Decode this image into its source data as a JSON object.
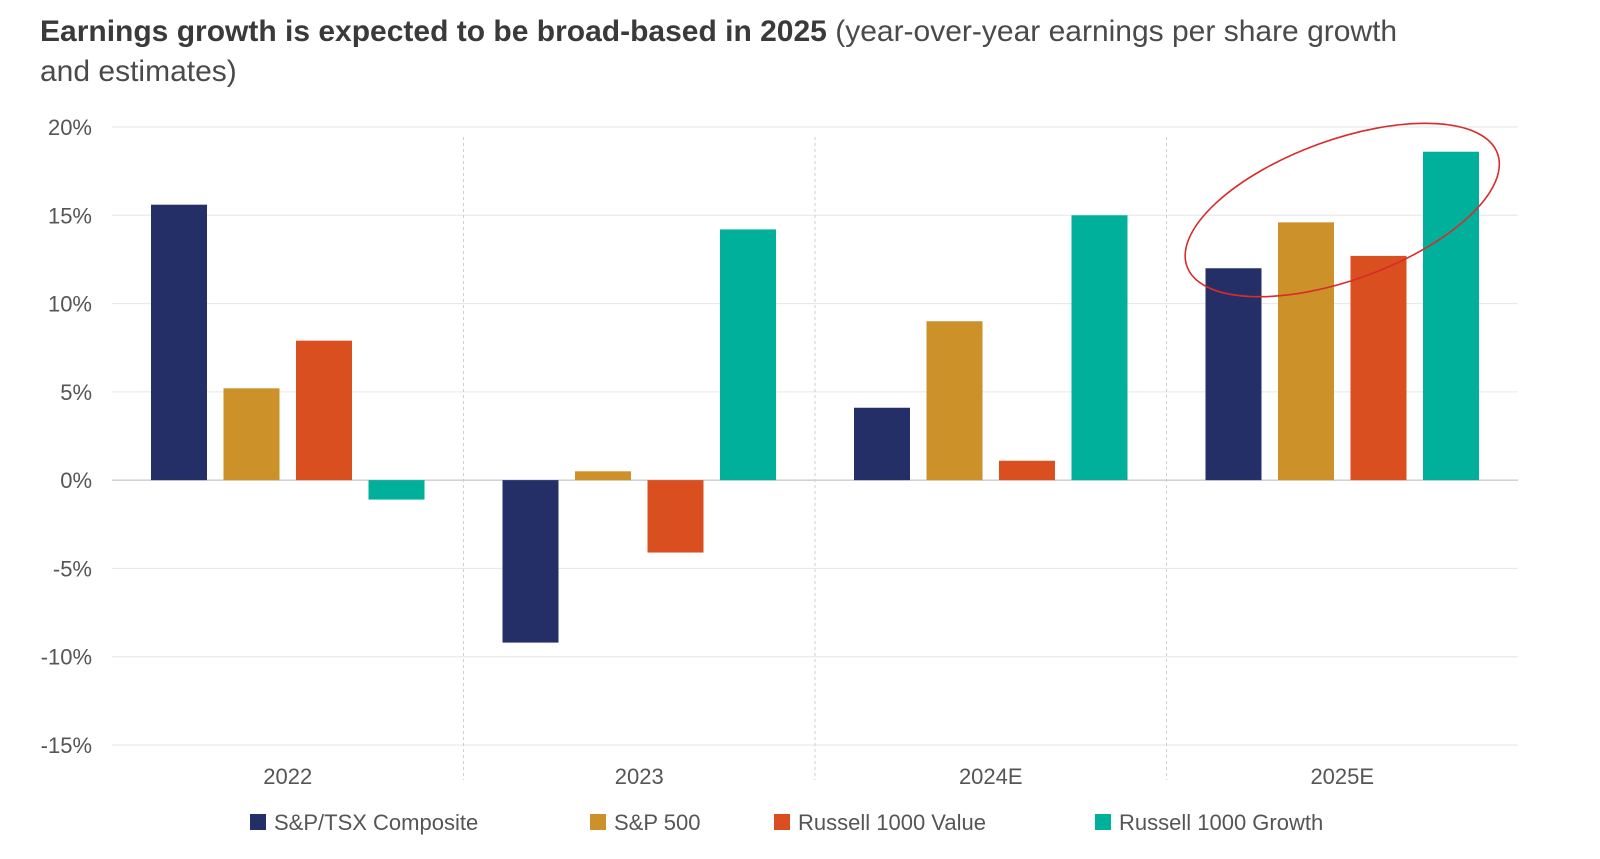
{
  "chart_data": {
    "type": "bar",
    "title": "Earnings growth is expected to be broad-based in 2025",
    "subtitle": "(year-over-year earnings per share growth and estimates)",
    "xlabel": "",
    "ylabel": "",
    "categories": [
      "2022",
      "2023",
      "2024E",
      "2025E"
    ],
    "ylim": [
      -15,
      20
    ],
    "yticks": [
      20,
      15,
      10,
      5,
      0,
      -5,
      -10,
      -15
    ],
    "ytick_labels": [
      "20%",
      "15%",
      "10%",
      "5%",
      "0%",
      "-5%",
      "-10%",
      "-15%"
    ],
    "grid": true,
    "legend_position": "bottom",
    "series": [
      {
        "name": "S&P/TSX Composite",
        "color": "#232f66",
        "values": [
          15.6,
          -9.2,
          4.1,
          12.0
        ]
      },
      {
        "name": "S&P 500",
        "color": "#cc9129",
        "values": [
          5.2,
          0.5,
          9.0,
          14.6
        ]
      },
      {
        "name": "Russell 1000 Value",
        "color": "#d94f1f",
        "values": [
          7.9,
          -4.1,
          1.1,
          12.7
        ]
      },
      {
        "name": "Russell 1000 Growth",
        "color": "#00b09b",
        "values": [
          -1.1,
          14.2,
          15.0,
          18.6
        ]
      }
    ],
    "annotations": [
      {
        "type": "ellipse-highlight",
        "category": "2025E",
        "color": "#d92b2b"
      }
    ]
  }
}
